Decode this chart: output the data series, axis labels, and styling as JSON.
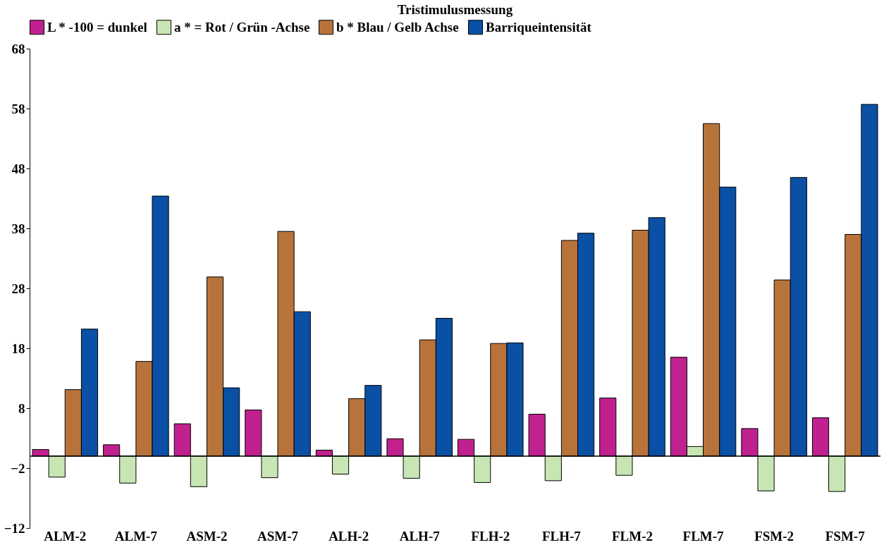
{
  "chart_data": {
    "type": "bar",
    "title": "Tristimulusmessung",
    "categories": [
      "ALM-2",
      "ALM-7",
      "ASM-2",
      "ASM-7",
      "ALH-2",
      "ALH-7",
      "FLH-2",
      "FLH-7",
      "FLM-2",
      "FLM-7",
      "FSM-2",
      "FSM-7"
    ],
    "series": [
      {
        "name": "L * -100 = dunkel",
        "color": "#c0218f",
        "values": [
          1.1,
          1.9,
          5.4,
          7.7,
          1.0,
          2.9,
          2.8,
          7.0,
          9.7,
          16.5,
          4.6,
          6.4
        ]
      },
      {
        "name": "a * = Rot / Grün -Achse",
        "color": "#c8e6b4",
        "values": [
          -3.5,
          -4.5,
          -5.1,
          -3.6,
          -3.0,
          -3.7,
          -4.4,
          -4.1,
          -3.2,
          1.6,
          -5.8,
          -5.9
        ]
      },
      {
        "name": "b * Blau / Gelb Achse",
        "color": "#b8733b",
        "values": [
          11.1,
          15.8,
          29.9,
          37.5,
          9.6,
          19.4,
          18.8,
          36.0,
          37.7,
          55.5,
          29.4,
          37.0
        ]
      },
      {
        "name": "Barriqueintensität",
        "color": "#0a50a5",
        "values": [
          21.2,
          43.4,
          11.4,
          24.1,
          11.8,
          23.0,
          18.9,
          37.2,
          39.8,
          44.9,
          46.5,
          58.7
        ]
      }
    ],
    "ylim": [
      -12,
      68
    ],
    "yticks": [
      -12,
      -2,
      8,
      18,
      28,
      38,
      48,
      58,
      68
    ],
    "ref_lines": [
      {
        "axis": "y",
        "value": 0
      }
    ],
    "grid": false,
    "legend": "top"
  }
}
